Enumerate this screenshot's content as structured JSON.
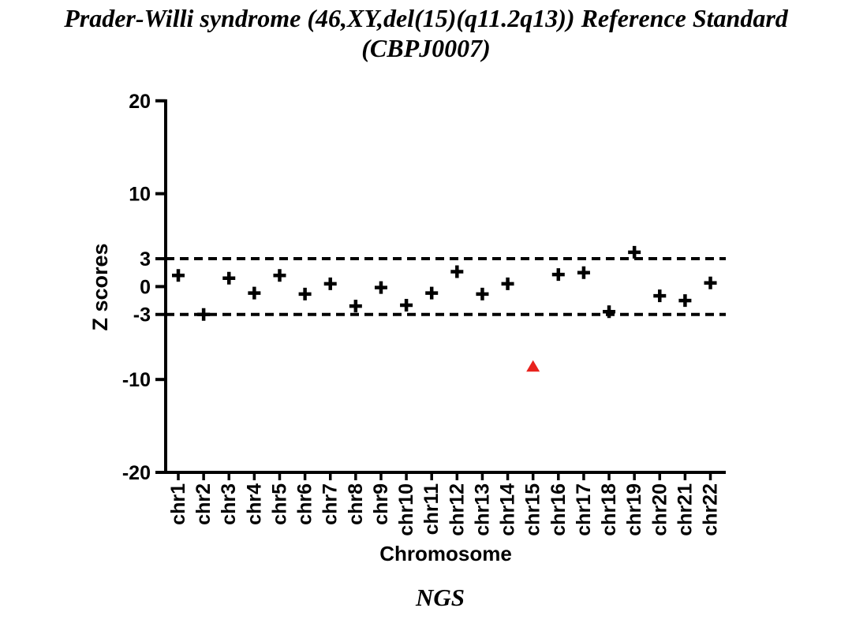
{
  "title": {
    "line1": "Prader-Willi syndrome (46,XY,del(15)(q11.2q13)) Reference Standard",
    "line2": "(CBPJ0007)"
  },
  "footer": {
    "label": "NGS"
  },
  "chart_data": {
    "type": "scatter",
    "title": "Prader-Willi syndrome (46,XY,del(15)(q11.2q13)) Reference Standard (CBPJ0007)",
    "xlabel": "Chromosome",
    "ylabel": "Z scores",
    "categories": [
      "chr1",
      "chr2",
      "chr3",
      "chr4",
      "chr5",
      "chr6",
      "chr7",
      "chr8",
      "chr9",
      "chr10",
      "chr11",
      "chr12",
      "chr13",
      "chr14",
      "chr15",
      "chr16",
      "chr17",
      "chr18",
      "chr19",
      "chr20",
      "chr21",
      "chr22"
    ],
    "values": [
      1.2,
      -3.0,
      0.9,
      -0.7,
      1.2,
      -0.8,
      0.3,
      -2.1,
      -0.1,
      -2.0,
      -0.7,
      1.6,
      -0.8,
      0.3,
      -8.6,
      1.3,
      1.5,
      -2.7,
      3.7,
      -1.0,
      -1.5,
      0.4
    ],
    "ylim": [
      -20,
      20
    ],
    "yticks": [
      20,
      10,
      3,
      0,
      -3,
      -10,
      -20
    ],
    "threshold_lines": [
      3,
      -3
    ],
    "threshold_style": "dashed",
    "default_marker": "plus",
    "default_color": "#000000",
    "highlight_point": {
      "category": "chr15",
      "value": -8.6,
      "marker": "triangle-up",
      "color": "#e8221d"
    },
    "grid": false,
    "legend": false
  }
}
